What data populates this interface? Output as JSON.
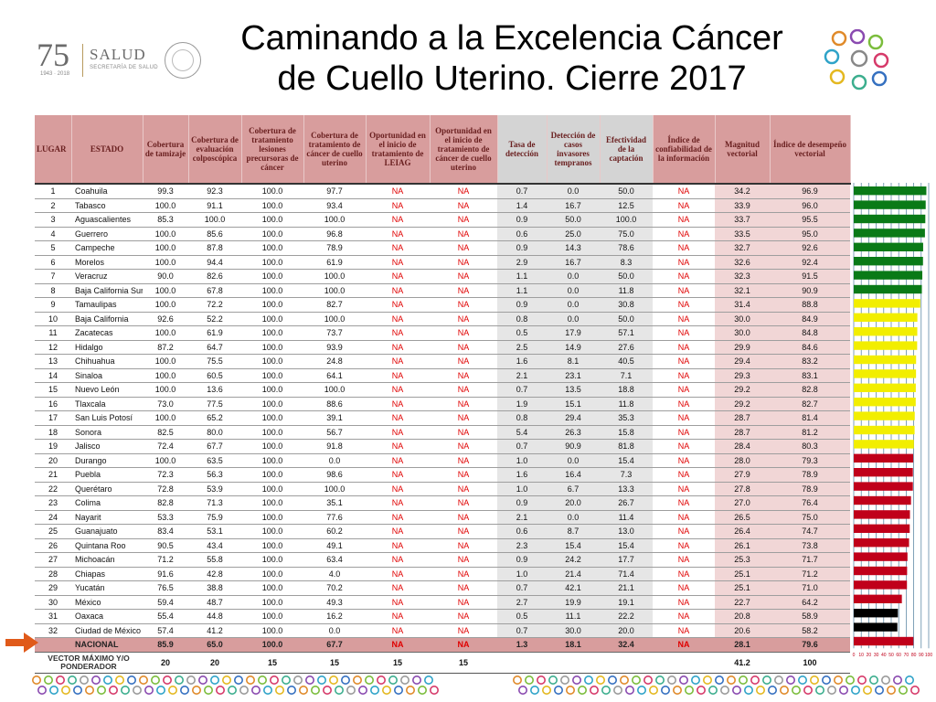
{
  "header": {
    "logo_number": "75",
    "logo_years": "1943 · 2018",
    "logo_org": "SALUD",
    "logo_sub": "SECRETARÍA DE SALUD",
    "title_line1": "Caminando a la Excelencia Cáncer",
    "title_line2": "de Cuello Uterino. Cierre 2017"
  },
  "colors": {
    "green": "#0a7a17",
    "yellow": "#f2ee00",
    "red": "#c0001a",
    "black": "#000000",
    "header_bg": "#d89d9d",
    "gray_col": "#e6e6e6"
  },
  "table": {
    "headers": [
      "LUGAR",
      "ESTADO",
      "Cobertura de tamizaje",
      "Cobertura de evaluación colposcópica",
      "Cobertura de tratamiento lesiones precursoras de cáncer",
      "Cobertura de tratamiento de cáncer de cuello uterino",
      "Oportunidad en el inicio de tratamiento de LEIAG",
      "Oportunidad en el inicio de tratamiento de cáncer de cuello uterino",
      "Tasa de detección",
      "Detección de casos invasores tempranos",
      "Efectividad de la captación",
      "Índice de confiabilidad de la información",
      "Magnitud vectorial",
      "Índice de desempeño vectorial"
    ],
    "rows": [
      [
        "1",
        "Coahuila",
        "99.3",
        "92.3",
        "100.0",
        "97.7",
        "NA",
        "NA",
        "0.7",
        "0.0",
        "50.0",
        "NA",
        "34.2",
        "96.9"
      ],
      [
        "2",
        "Tabasco",
        "100.0",
        "91.1",
        "100.0",
        "93.4",
        "NA",
        "NA",
        "1.4",
        "16.7",
        "12.5",
        "NA",
        "33.9",
        "96.0"
      ],
      [
        "3",
        "Aguascalientes",
        "85.3",
        "100.0",
        "100.0",
        "100.0",
        "NA",
        "NA",
        "0.9",
        "50.0",
        "100.0",
        "NA",
        "33.7",
        "95.5"
      ],
      [
        "4",
        "Guerrero",
        "100.0",
        "85.6",
        "100.0",
        "96.8",
        "NA",
        "NA",
        "0.6",
        "25.0",
        "75.0",
        "NA",
        "33.5",
        "95.0"
      ],
      [
        "5",
        "Campeche",
        "100.0",
        "87.8",
        "100.0",
        "78.9",
        "NA",
        "NA",
        "0.9",
        "14.3",
        "78.6",
        "NA",
        "32.7",
        "92.6"
      ],
      [
        "6",
        "Morelos",
        "100.0",
        "94.4",
        "100.0",
        "61.9",
        "NA",
        "NA",
        "2.9",
        "16.7",
        "8.3",
        "NA",
        "32.6",
        "92.4"
      ],
      [
        "7",
        "Veracruz",
        "90.0",
        "82.6",
        "100.0",
        "100.0",
        "NA",
        "NA",
        "1.1",
        "0.0",
        "50.0",
        "NA",
        "32.3",
        "91.5"
      ],
      [
        "8",
        "Baja California Sur",
        "100.0",
        "67.8",
        "100.0",
        "100.0",
        "NA",
        "NA",
        "1.1",
        "0.0",
        "11.8",
        "NA",
        "32.1",
        "90.9"
      ],
      [
        "9",
        "Tamaulipas",
        "100.0",
        "72.2",
        "100.0",
        "82.7",
        "NA",
        "NA",
        "0.9",
        "0.0",
        "30.8",
        "NA",
        "31.4",
        "88.8"
      ],
      [
        "10",
        "Baja California",
        "92.6",
        "52.2",
        "100.0",
        "100.0",
        "NA",
        "NA",
        "0.8",
        "0.0",
        "50.0",
        "NA",
        "30.0",
        "84.9"
      ],
      [
        "11",
        "Zacatecas",
        "100.0",
        "61.9",
        "100.0",
        "73.7",
        "NA",
        "NA",
        "0.5",
        "17.9",
        "57.1",
        "NA",
        "30.0",
        "84.8"
      ],
      [
        "12",
        "Hidalgo",
        "87.2",
        "64.7",
        "100.0",
        "93.9",
        "NA",
        "NA",
        "2.5",
        "14.9",
        "27.6",
        "NA",
        "29.9",
        "84.6"
      ],
      [
        "13",
        "Chihuahua",
        "100.0",
        "75.5",
        "100.0",
        "24.8",
        "NA",
        "NA",
        "1.6",
        "8.1",
        "40.5",
        "NA",
        "29.4",
        "83.2"
      ],
      [
        "14",
        "Sinaloa",
        "100.0",
        "60.5",
        "100.0",
        "64.1",
        "NA",
        "NA",
        "2.1",
        "23.1",
        "7.1",
        "NA",
        "29.3",
        "83.1"
      ],
      [
        "15",
        "Nuevo León",
        "100.0",
        "13.6",
        "100.0",
        "100.0",
        "NA",
        "NA",
        "0.7",
        "13.5",
        "18.8",
        "NA",
        "29.2",
        "82.8"
      ],
      [
        "16",
        "Tlaxcala",
        "73.0",
        "77.5",
        "100.0",
        "88.6",
        "NA",
        "NA",
        "1.9",
        "15.1",
        "11.8",
        "NA",
        "29.2",
        "82.7"
      ],
      [
        "17",
        "San Luis Potosí",
        "100.0",
        "65.2",
        "100.0",
        "39.1",
        "NA",
        "NA",
        "0.8",
        "29.4",
        "35.3",
        "NA",
        "28.7",
        "81.4"
      ],
      [
        "18",
        "Sonora",
        "82.5",
        "80.0",
        "100.0",
        "56.7",
        "NA",
        "NA",
        "5.4",
        "26.3",
        "15.8",
        "NA",
        "28.7",
        "81.2"
      ],
      [
        "19",
        "Jalisco",
        "72.4",
        "67.7",
        "100.0",
        "91.8",
        "NA",
        "NA",
        "0.7",
        "90.9",
        "81.8",
        "NA",
        "28.4",
        "80.3"
      ],
      [
        "20",
        "Durango",
        "100.0",
        "63.5",
        "100.0",
        "0.0",
        "NA",
        "NA",
        "1.0",
        "0.0",
        "15.4",
        "NA",
        "28.0",
        "79.3"
      ],
      [
        "21",
        "Puebla",
        "72.3",
        "56.3",
        "100.0",
        "98.6",
        "NA",
        "NA",
        "1.6",
        "16.4",
        "7.3",
        "NA",
        "27.9",
        "78.9"
      ],
      [
        "22",
        "Querétaro",
        "72.8",
        "53.9",
        "100.0",
        "100.0",
        "NA",
        "NA",
        "1.0",
        "6.7",
        "13.3",
        "NA",
        "27.8",
        "78.9"
      ],
      [
        "23",
        "Colima",
        "82.8",
        "71.3",
        "100.0",
        "35.1",
        "NA",
        "NA",
        "0.9",
        "20.0",
        "26.7",
        "NA",
        "27.0",
        "76.4"
      ],
      [
        "24",
        "Nayarit",
        "53.3",
        "75.9",
        "100.0",
        "77.6",
        "NA",
        "NA",
        "2.1",
        "0.0",
        "11.4",
        "NA",
        "26.5",
        "75.0"
      ],
      [
        "25",
        "Guanajuato",
        "83.4",
        "53.1",
        "100.0",
        "60.2",
        "NA",
        "NA",
        "0.6",
        "8.7",
        "13.0",
        "NA",
        "26.4",
        "74.7"
      ],
      [
        "26",
        "Quintana Roo",
        "90.5",
        "43.4",
        "100.0",
        "49.1",
        "NA",
        "NA",
        "2.3",
        "15.4",
        "15.4",
        "NA",
        "26.1",
        "73.8"
      ],
      [
        "27",
        "Michoacán",
        "71.2",
        "55.8",
        "100.0",
        "63.4",
        "NA",
        "NA",
        "0.9",
        "24.2",
        "17.7",
        "NA",
        "25.3",
        "71.7"
      ],
      [
        "28",
        "Chiapas",
        "91.6",
        "42.8",
        "100.0",
        "4.0",
        "NA",
        "NA",
        "1.0",
        "21.4",
        "71.4",
        "NA",
        "25.1",
        "71.2"
      ],
      [
        "29",
        "Yucatán",
        "76.5",
        "38.8",
        "100.0",
        "70.2",
        "NA",
        "NA",
        "0.7",
        "42.1",
        "21.1",
        "NA",
        "25.1",
        "71.0"
      ],
      [
        "30",
        "México",
        "59.4",
        "48.7",
        "100.0",
        "49.3",
        "NA",
        "NA",
        "2.7",
        "19.9",
        "19.1",
        "NA",
        "22.7",
        "64.2"
      ],
      [
        "31",
        "Oaxaca",
        "55.4",
        "44.8",
        "100.0",
        "16.2",
        "NA",
        "NA",
        "0.5",
        "11.1",
        "22.2",
        "NA",
        "20.8",
        "58.9"
      ],
      [
        "32",
        "Ciudad de México",
        "57.4",
        "41.2",
        "100.0",
        "0.0",
        "NA",
        "NA",
        "0.7",
        "30.0",
        "20.0",
        "NA",
        "20.6",
        "58.2"
      ]
    ],
    "national": [
      "",
      "NACIONAL",
      "85.9",
      "65.0",
      "100.0",
      "67.7",
      "NA",
      "NA",
      "1.3",
      "18.1",
      "32.4",
      "NA",
      "28.1",
      "79.6"
    ],
    "vector": [
      "VECTOR MÁXIMO Y/O PONDERADOR",
      "20",
      "20",
      "15",
      "15",
      "15",
      "15",
      "",
      "",
      "",
      "",
      "41.2",
      "100"
    ]
  },
  "chart_data": {
    "type": "bar",
    "orientation": "horizontal",
    "categories": [
      "Coahuila",
      "Tabasco",
      "Aguascalientes",
      "Guerrero",
      "Campeche",
      "Morelos",
      "Veracruz",
      "Baja California Sur",
      "Tamaulipas",
      "Baja California",
      "Zacatecas",
      "Hidalgo",
      "Chihuahua",
      "Sinaloa",
      "Nuevo León",
      "Tlaxcala",
      "San Luis Potosí",
      "Sonora",
      "Jalisco",
      "Durango",
      "Puebla",
      "Querétaro",
      "Colima",
      "Nayarit",
      "Guanajuato",
      "Quintana Roo",
      "Michoacán",
      "Chiapas",
      "Yucatán",
      "México",
      "Oaxaca",
      "Ciudad de México",
      "NACIONAL"
    ],
    "values": [
      96.9,
      96.0,
      95.5,
      95.0,
      92.6,
      92.4,
      91.5,
      90.9,
      88.8,
      84.9,
      84.8,
      84.6,
      83.2,
      83.1,
      82.8,
      82.7,
      81.4,
      81.2,
      80.3,
      79.3,
      78.9,
      78.9,
      76.4,
      75.0,
      74.7,
      73.8,
      71.7,
      71.2,
      71.0,
      64.2,
      58.9,
      58.2,
      79.6
    ],
    "bar_colors": [
      "green",
      "green",
      "green",
      "green",
      "green",
      "green",
      "green",
      "green",
      "yellow",
      "yellow",
      "yellow",
      "yellow",
      "yellow",
      "yellow",
      "yellow",
      "yellow",
      "yellow",
      "yellow",
      "yellow",
      "red",
      "red",
      "red",
      "red",
      "red",
      "red",
      "red",
      "red",
      "red",
      "red",
      "red",
      "black",
      "black",
      "red"
    ],
    "ticks": [
      "0",
      "10",
      "20",
      "30",
      "40",
      "50",
      "60",
      "70",
      "80",
      "90",
      "100"
    ],
    "xlim": [
      0,
      100
    ],
    "grid": true
  }
}
